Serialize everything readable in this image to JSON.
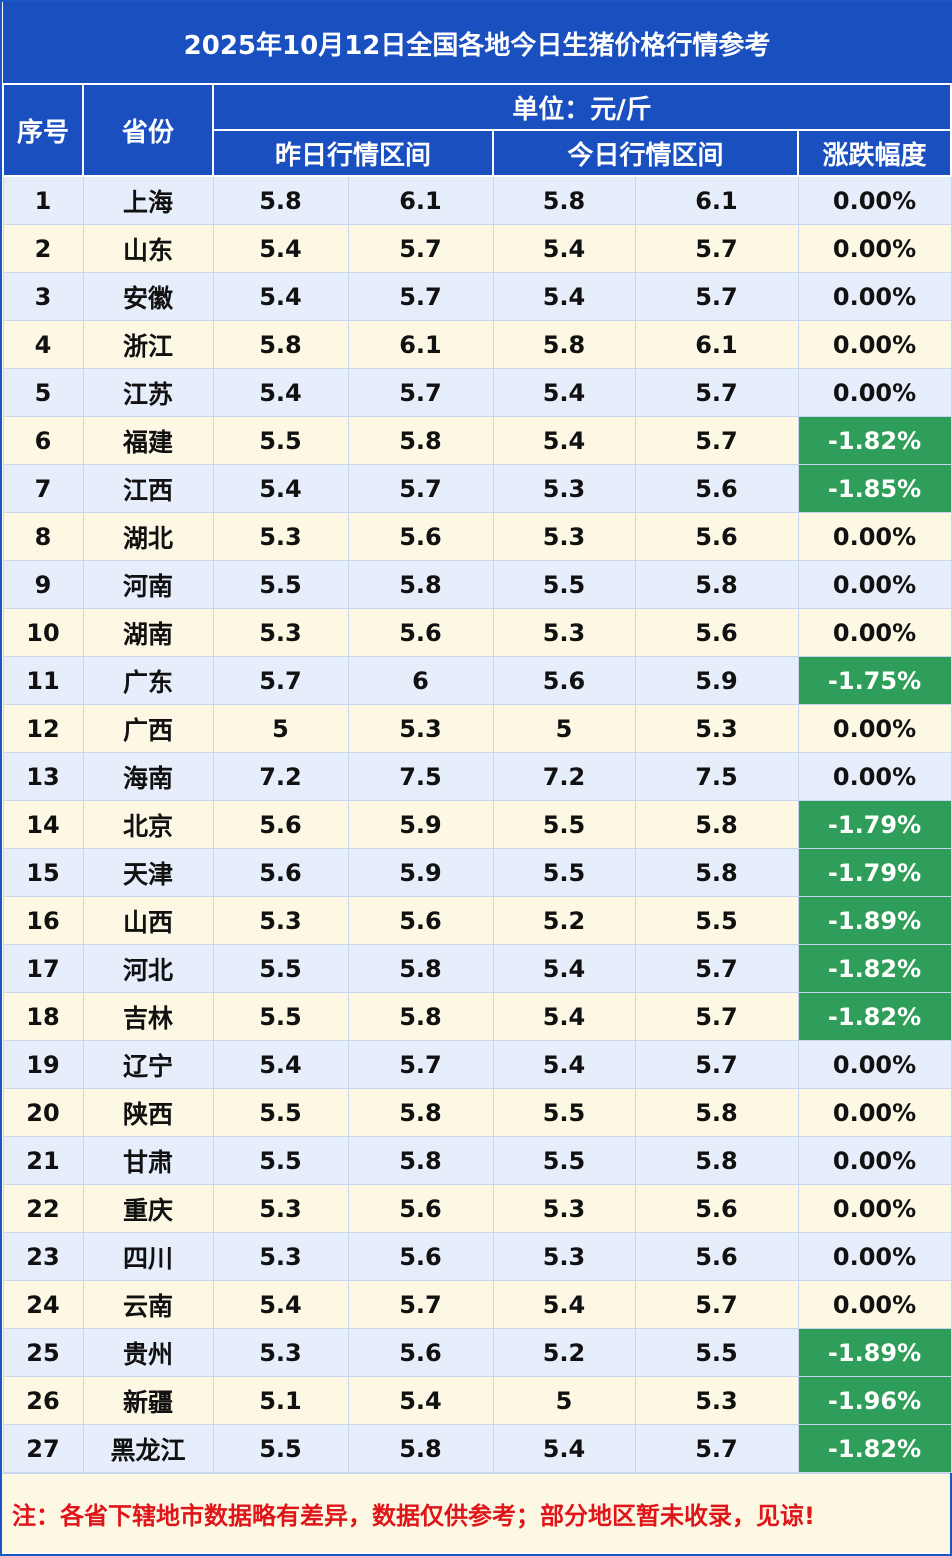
{
  "title": "2025年10月12日全国各地今日生猪价格行情参考",
  "headers": {
    "index": "序号",
    "province": "省份",
    "unit": "单位：元/斤",
    "yesterday_range": "昨日行情区间",
    "today_range": "今日行情区间",
    "change": "涨跌幅度"
  },
  "colors": {
    "header_blue": "#1a4fc0",
    "down_green": "#2f9e5a",
    "note_red": "#e0151a"
  },
  "rows": [
    {
      "no": "1",
      "province": "上海",
      "y_low": "5.8",
      "y_high": "6.1",
      "t_low": "5.8",
      "t_high": "6.1",
      "change": "0.00%"
    },
    {
      "no": "2",
      "province": "山东",
      "y_low": "5.4",
      "y_high": "5.7",
      "t_low": "5.4",
      "t_high": "5.7",
      "change": "0.00%"
    },
    {
      "no": "3",
      "province": "安徽",
      "y_low": "5.4",
      "y_high": "5.7",
      "t_low": "5.4",
      "t_high": "5.7",
      "change": "0.00%"
    },
    {
      "no": "4",
      "province": "浙江",
      "y_low": "5.8",
      "y_high": "6.1",
      "t_low": "5.8",
      "t_high": "6.1",
      "change": "0.00%"
    },
    {
      "no": "5",
      "province": "江苏",
      "y_low": "5.4",
      "y_high": "5.7",
      "t_low": "5.4",
      "t_high": "5.7",
      "change": "0.00%"
    },
    {
      "no": "6",
      "province": "福建",
      "y_low": "5.5",
      "y_high": "5.8",
      "t_low": "5.4",
      "t_high": "5.7",
      "change": "-1.82%"
    },
    {
      "no": "7",
      "province": "江西",
      "y_low": "5.4",
      "y_high": "5.7",
      "t_low": "5.3",
      "t_high": "5.6",
      "change": "-1.85%"
    },
    {
      "no": "8",
      "province": "湖北",
      "y_low": "5.3",
      "y_high": "5.6",
      "t_low": "5.3",
      "t_high": "5.6",
      "change": "0.00%"
    },
    {
      "no": "9",
      "province": "河南",
      "y_low": "5.5",
      "y_high": "5.8",
      "t_low": "5.5",
      "t_high": "5.8",
      "change": "0.00%"
    },
    {
      "no": "10",
      "province": "湖南",
      "y_low": "5.3",
      "y_high": "5.6",
      "t_low": "5.3",
      "t_high": "5.6",
      "change": "0.00%"
    },
    {
      "no": "11",
      "province": "广东",
      "y_low": "5.7",
      "y_high": "6",
      "t_low": "5.6",
      "t_high": "5.9",
      "change": "-1.75%"
    },
    {
      "no": "12",
      "province": "广西",
      "y_low": "5",
      "y_high": "5.3",
      "t_low": "5",
      "t_high": "5.3",
      "change": "0.00%"
    },
    {
      "no": "13",
      "province": "海南",
      "y_low": "7.2",
      "y_high": "7.5",
      "t_low": "7.2",
      "t_high": "7.5",
      "change": "0.00%"
    },
    {
      "no": "14",
      "province": "北京",
      "y_low": "5.6",
      "y_high": "5.9",
      "t_low": "5.5",
      "t_high": "5.8",
      "change": "-1.79%"
    },
    {
      "no": "15",
      "province": "天津",
      "y_low": "5.6",
      "y_high": "5.9",
      "t_low": "5.5",
      "t_high": "5.8",
      "change": "-1.79%"
    },
    {
      "no": "16",
      "province": "山西",
      "y_low": "5.3",
      "y_high": "5.6",
      "t_low": "5.2",
      "t_high": "5.5",
      "change": "-1.89%"
    },
    {
      "no": "17",
      "province": "河北",
      "y_low": "5.5",
      "y_high": "5.8",
      "t_low": "5.4",
      "t_high": "5.7",
      "change": "-1.82%"
    },
    {
      "no": "18",
      "province": "吉林",
      "y_low": "5.5",
      "y_high": "5.8",
      "t_low": "5.4",
      "t_high": "5.7",
      "change": "-1.82%"
    },
    {
      "no": "19",
      "province": "辽宁",
      "y_low": "5.4",
      "y_high": "5.7",
      "t_low": "5.4",
      "t_high": "5.7",
      "change": "0.00%"
    },
    {
      "no": "20",
      "province": "陕西",
      "y_low": "5.5",
      "y_high": "5.8",
      "t_low": "5.5",
      "t_high": "5.8",
      "change": "0.00%"
    },
    {
      "no": "21",
      "province": "甘肃",
      "y_low": "5.5",
      "y_high": "5.8",
      "t_low": "5.5",
      "t_high": "5.8",
      "change": "0.00%"
    },
    {
      "no": "22",
      "province": "重庆",
      "y_low": "5.3",
      "y_high": "5.6",
      "t_low": "5.3",
      "t_high": "5.6",
      "change": "0.00%"
    },
    {
      "no": "23",
      "province": "四川",
      "y_low": "5.3",
      "y_high": "5.6",
      "t_low": "5.3",
      "t_high": "5.6",
      "change": "0.00%"
    },
    {
      "no": "24",
      "province": "云南",
      "y_low": "5.4",
      "y_high": "5.7",
      "t_low": "5.4",
      "t_high": "5.7",
      "change": "0.00%"
    },
    {
      "no": "25",
      "province": "贵州",
      "y_low": "5.3",
      "y_high": "5.6",
      "t_low": "5.2",
      "t_high": "5.5",
      "change": "-1.89%"
    },
    {
      "no": "26",
      "province": "新疆",
      "y_low": "5.1",
      "y_high": "5.4",
      "t_low": "5",
      "t_high": "5.3",
      "change": "-1.96%"
    },
    {
      "no": "27",
      "province": "黑龙江",
      "y_low": "5.5",
      "y_high": "5.8",
      "t_low": "5.4",
      "t_high": "5.7",
      "change": "-1.82%"
    }
  ],
  "note": "注：各省下辖地市数据略有差异，数据仅供参考；部分地区暂未收录，见谅!"
}
